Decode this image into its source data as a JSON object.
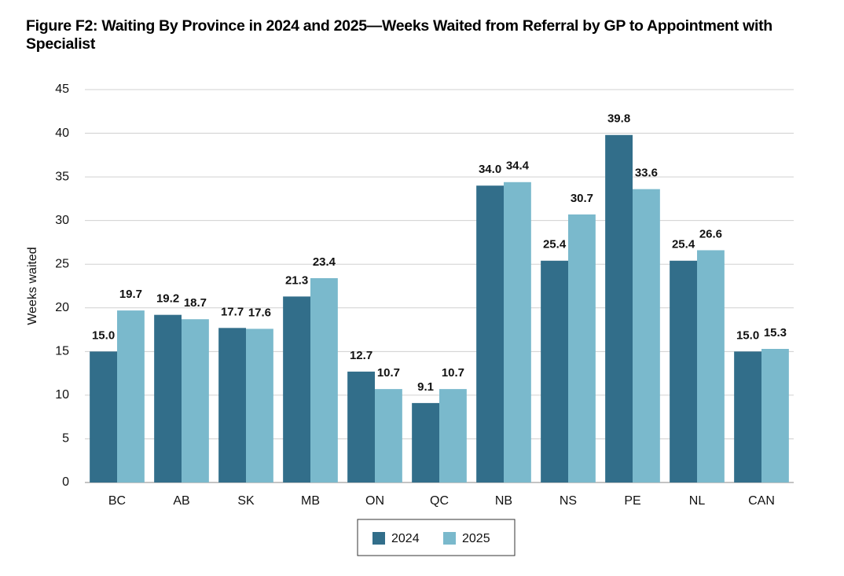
{
  "chart_data": {
    "type": "bar",
    "title": "Figure F2: Waiting By Province in 2024 and 2025—Weeks Waited from Referral by GP to Appointment with Specialist",
    "y_label": "Weeks waited",
    "categories": [
      "BC",
      "AB",
      "SK",
      "MB",
      "ON",
      "QC",
      "NB",
      "NS",
      "PE",
      "NL",
      "CAN"
    ],
    "series": [
      {
        "name": "2024",
        "color": "#326e8a",
        "values": [
          15.0,
          19.2,
          17.7,
          21.3,
          12.7,
          9.1,
          34.0,
          25.4,
          39.8,
          25.4,
          15.0
        ],
        "value_labels": [
          "15.0",
          "19.2",
          "17.7",
          "21.3",
          "12.7",
          "9.1",
          "34.0",
          "25.4",
          "39.8",
          "25.4",
          "15.0"
        ]
      },
      {
        "name": "2025",
        "color": "#7ab9cc",
        "values": [
          19.7,
          18.7,
          17.6,
          23.4,
          10.7,
          10.7,
          34.4,
          30.7,
          33.6,
          26.6,
          15.3
        ],
        "value_labels": [
          "19.7",
          "18.7",
          "17.6",
          "23.4",
          "10.7",
          "10.7",
          "34.4",
          "30.7",
          "33.6",
          "26.6",
          "15.3"
        ]
      }
    ],
    "ylim": [
      0,
      45
    ],
    "yticks": [
      0,
      5,
      10,
      15,
      20,
      25,
      30,
      35,
      40,
      45
    ],
    "grid": true
  }
}
